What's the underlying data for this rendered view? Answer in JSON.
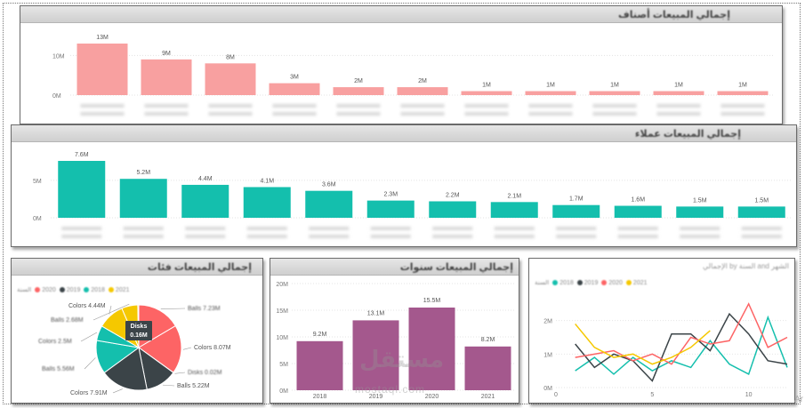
{
  "chart_data": [
    {
      "type": "bar",
      "title": "إجمالي المبيعات أصناف",
      "ylim": [
        0,
        13
      ],
      "ticks": [
        "10M",
        "0M"
      ],
      "tick_values": [
        10,
        0
      ],
      "data_labels": [
        "13M",
        "9M",
        "8M",
        "3M",
        "2M",
        "2M",
        "1M",
        "1M",
        "1M",
        "1M",
        "1M"
      ],
      "values": [
        13,
        9,
        8,
        3,
        2,
        2,
        1,
        1,
        1,
        1,
        1
      ],
      "color": "#f8a0a0"
    },
    {
      "type": "bar",
      "title": "إجمالي المبيعات عملاء",
      "ylim": [
        0,
        7.6
      ],
      "ticks": [
        "5M",
        "0M"
      ],
      "tick_values": [
        5,
        0
      ],
      "data_labels": [
        "7.6M",
        "5.2M",
        "4.4M",
        "4.1M",
        "3.6M",
        "2.3M",
        "2.2M",
        "2.1M",
        "1.7M",
        "1.6M",
        "1.5M",
        "1.5M"
      ],
      "values": [
        7.6,
        5.2,
        4.4,
        4.1,
        3.6,
        2.3,
        2.2,
        2.1,
        1.7,
        1.6,
        1.5,
        1.5
      ],
      "color": "#14bfad"
    },
    {
      "type": "pie",
      "title": "إجمالي المبيعات فئات",
      "legend_title": "السنة",
      "legend": [
        "2020",
        "2019",
        "2018",
        "2021"
      ],
      "tooltip_name": "Disks",
      "tooltip_value": "0.16M",
      "slice_labels": [
        "Balls 7.23M",
        "Colors 8.07M",
        "Disks 0.02M",
        "Balls 5.22M",
        "Colors 7.91M",
        "Balls 5.56M",
        "Colors 2.5M",
        "Colors 4.44M",
        "Balls 2.68M",
        "Disks 0.16M"
      ],
      "slices": [
        {
          "value": 7.23,
          "color": "#fd6465"
        },
        {
          "value": 8.07,
          "color": "#fd6465"
        },
        {
          "value": 0.02,
          "color": "#fd6465"
        },
        {
          "value": 5.22,
          "color": "#3b4448"
        },
        {
          "value": 7.91,
          "color": "#3b4448"
        },
        {
          "value": 5.56,
          "color": "#14bfad"
        },
        {
          "value": 2.5,
          "color": "#14bfad"
        },
        {
          "value": 4.44,
          "color": "#f5c800"
        },
        {
          "value": 2.68,
          "color": "#f5c800"
        },
        {
          "value": 0.16,
          "color": "#f5c800"
        }
      ]
    },
    {
      "type": "bar",
      "title": "إجمالي المبيعات سنوات",
      "categories": [
        "2018",
        "2019",
        "2020",
        "2021"
      ],
      "values": [
        9.2,
        13.1,
        15.5,
        8.2
      ],
      "data_labels": [
        "9.2M",
        "13.1M",
        "15.5M",
        "8.2M"
      ],
      "ylim": [
        0,
        20
      ],
      "ticks": [
        "20M",
        "15M",
        "10M",
        "5M",
        "0M"
      ],
      "tick_values": [
        20,
        15,
        10,
        5,
        0
      ],
      "color": "#a4588d"
    },
    {
      "type": "line",
      "title": "الإجمالي by السنة and الشهر",
      "legend_title": "السنة",
      "legend": [
        "2018",
        "2019",
        "2020",
        "2021"
      ],
      "xlim": [
        0,
        12
      ],
      "ylim": [
        0,
        3
      ],
      "x_ticks": [
        "0",
        "5",
        "10"
      ],
      "x_tick_values": [
        0,
        5,
        10
      ],
      "y_ticks": [
        "2M",
        "1M",
        "0M"
      ],
      "y_tick_values": [
        2,
        1,
        0
      ],
      "series": [
        {
          "color": "#14bfad",
          "x": [
            1,
            2,
            3,
            4,
            5,
            6,
            7,
            8,
            9,
            10,
            11,
            12
          ],
          "y": [
            0.5,
            0.9,
            0.4,
            0.9,
            0.5,
            0.8,
            0.6,
            1.4,
            0.7,
            0.4,
            2.1,
            0.6
          ]
        },
        {
          "color": "#3b4448",
          "x": [
            1,
            2,
            3,
            4,
            5,
            6,
            7,
            8,
            9,
            10,
            11,
            12
          ],
          "y": [
            1.3,
            0.6,
            1.0,
            0.8,
            0.2,
            1.6,
            1.6,
            1.1,
            2.2,
            1.6,
            0.8,
            0.7
          ]
        },
        {
          "color": "#fd6465",
          "x": [
            1,
            2,
            3,
            4,
            5,
            6,
            7,
            8,
            9,
            10,
            11,
            12
          ],
          "y": [
            0.9,
            1.0,
            1.1,
            0.8,
            1.0,
            0.7,
            1.5,
            1.3,
            1.4,
            2.5,
            1.2,
            1.5
          ]
        },
        {
          "color": "#f5c800",
          "x": [
            1,
            2,
            3,
            4,
            5,
            6,
            7,
            8
          ],
          "y": [
            1.9,
            1.2,
            0.9,
            1.0,
            0.7,
            0.9,
            1.2,
            1.7
          ]
        }
      ]
    }
  ],
  "watermark": {
    "arabic": "مستقل",
    "latin": "mostaql.com"
  },
  "corner_text": "Ar"
}
